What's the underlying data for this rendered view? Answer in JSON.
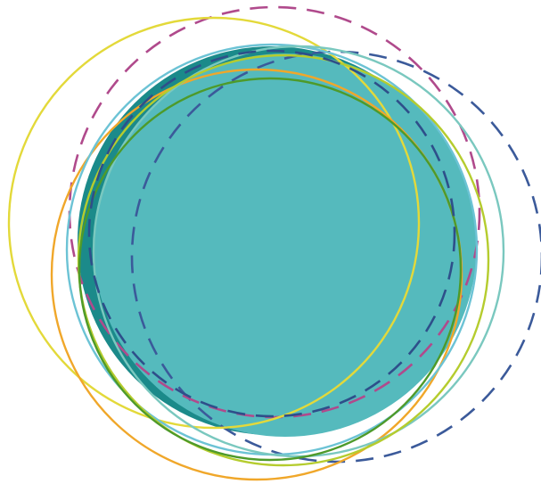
{
  "artwork": {
    "shapes": [
      {
        "name": "dark-teal-filled-circle",
        "fill": "#1b8a8a",
        "stroke": "none",
        "dashed": false
      },
      {
        "name": "light-teal-filled-circle",
        "fill": "#55babd",
        "stroke": "none",
        "dashed": false
      },
      {
        "name": "blue-dashed-ring",
        "fill": "none",
        "stroke": "#3b5a9a",
        "dashed": true
      },
      {
        "name": "magenta-dashed-ring",
        "fill": "none",
        "stroke": "#b04a8c",
        "dashed": true
      },
      {
        "name": "yellow-ring",
        "fill": "none",
        "stroke": "#e3d93a",
        "dashed": false
      },
      {
        "name": "orange-ring",
        "fill": "none",
        "stroke": "#f0a72a",
        "dashed": false
      },
      {
        "name": "sky-blue-ring",
        "fill": "none",
        "stroke": "#6cc3d5",
        "dashed": false
      },
      {
        "name": "mint-ring",
        "fill": "none",
        "stroke": "#7ac8bf",
        "dashed": false
      },
      {
        "name": "lime-ring",
        "fill": "none",
        "stroke": "#b5cc2e",
        "dashed": false
      },
      {
        "name": "green-ring",
        "fill": "none",
        "stroke": "#4e9a2a",
        "dashed": false
      },
      {
        "name": "navy-dashed-ring-inner",
        "fill": "none",
        "stroke": "#2e4f8a",
        "dashed": true
      }
    ]
  }
}
